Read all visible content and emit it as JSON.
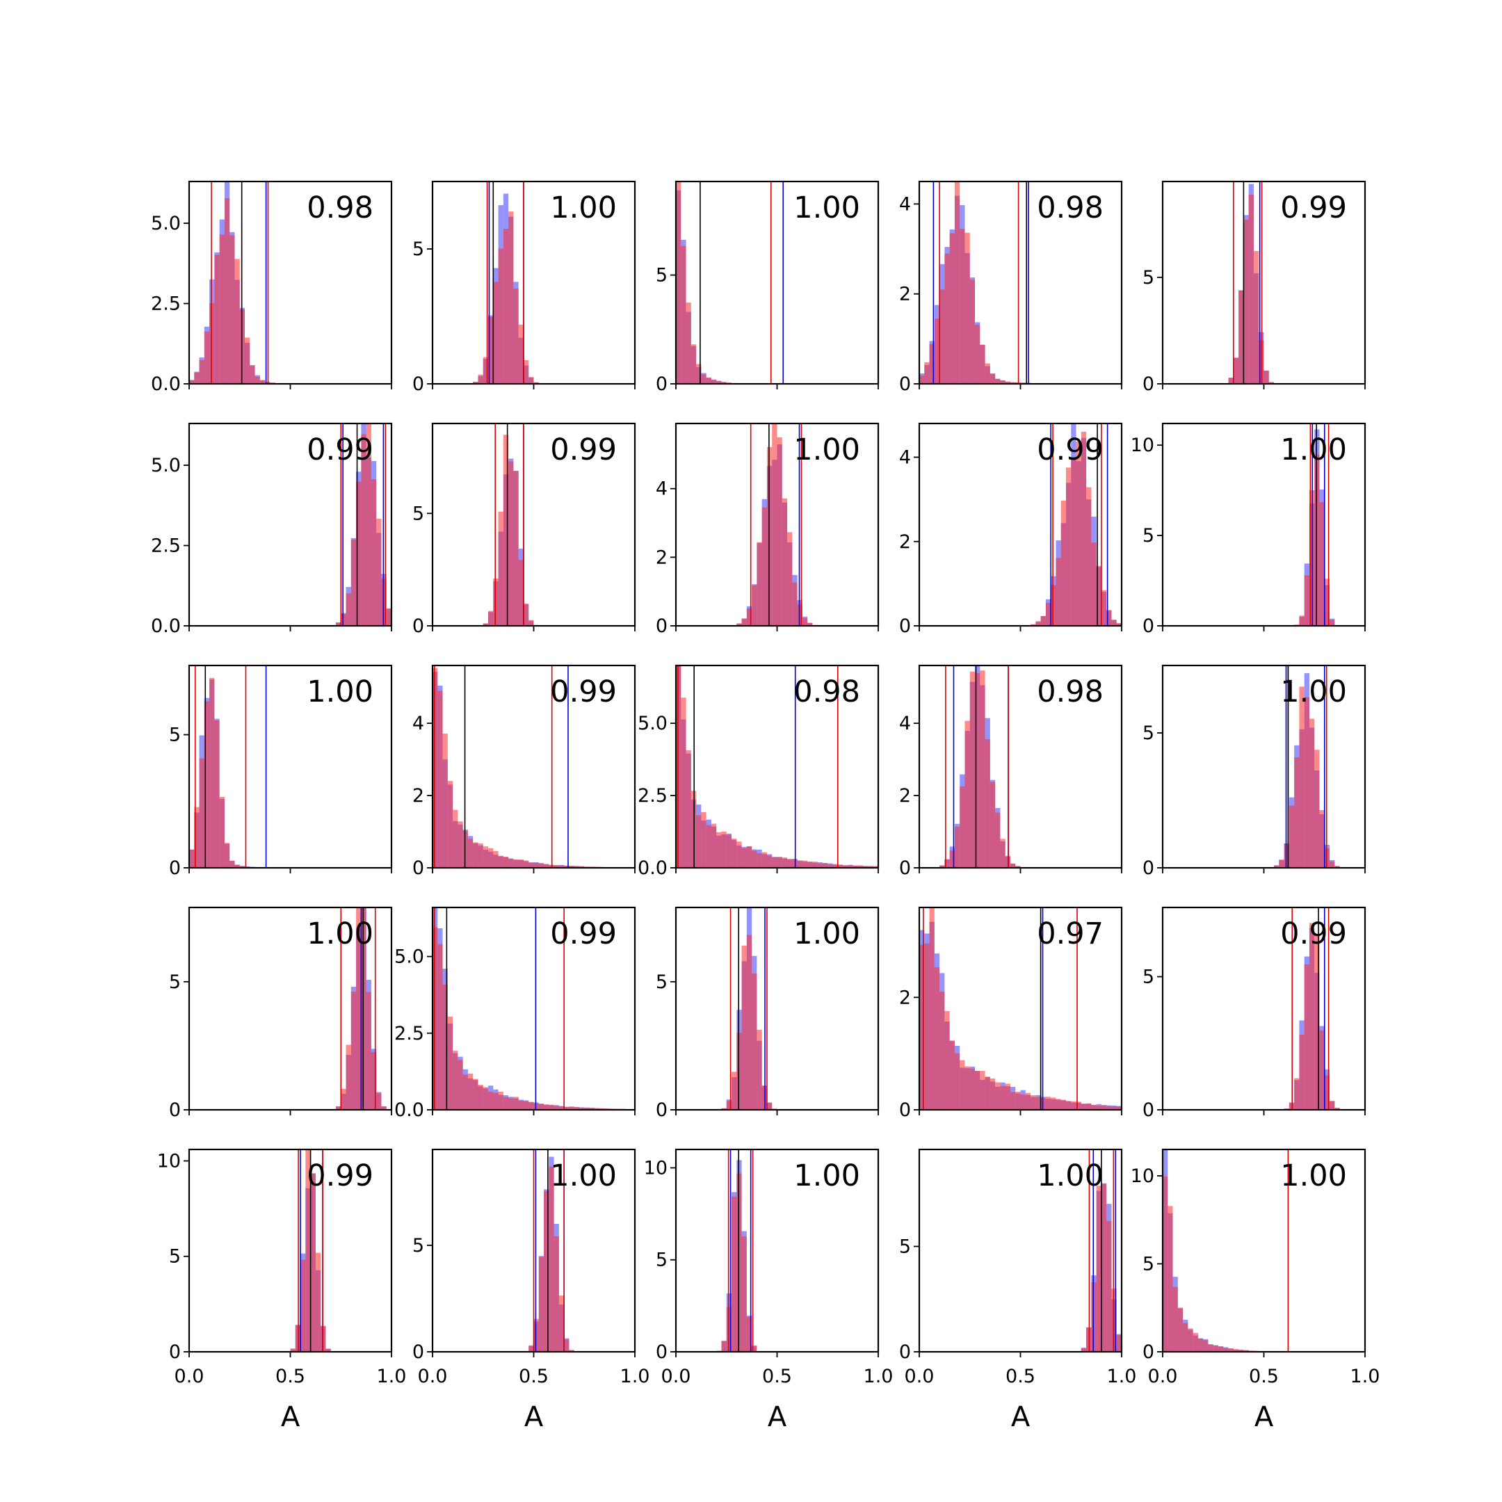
{
  "chart_data": {
    "type": "histogram-grid",
    "rows": 5,
    "cols": 5,
    "xlim": [
      0,
      1
    ],
    "xticks": [
      "0.0",
      "0.5",
      "1.0"
    ],
    "xlabel": "A",
    "colors": {
      "red_hist": "#ff2a2a",
      "blue_hist": "#3c3cf5",
      "red_line": "#e00000",
      "blue_line": "#0000dd",
      "black_line": "#000000"
    },
    "panels": [
      {
        "annotation": "0.98",
        "ymax": 6.3,
        "yticks": [
          0,
          2.5,
          5
        ],
        "ytick_labels": [
          "0.0",
          "2.5",
          "5.0"
        ],
        "shape": "skew",
        "peak": 0.18,
        "width": 0.06,
        "tail": 0.08,
        "tail_len": 0.7,
        "height": 6.0,
        "lines": {
          "red": [
            0.11,
            0.39
          ],
          "blue": [
            0.38
          ],
          "black": [
            0.26
          ]
        }
      },
      {
        "annotation": "1.00",
        "ymax": 7.5,
        "yticks": [
          0,
          5
        ],
        "ytick_labels": [
          "0",
          "5"
        ],
        "shape": "normal",
        "peak": 0.36,
        "width": 0.05,
        "height": 6.5,
        "lines": {
          "red": [
            0.27,
            0.45
          ],
          "blue": [
            0.28,
            0.45
          ],
          "black": [
            0.3
          ]
        }
      },
      {
        "annotation": "1.00",
        "ymax": 9.3,
        "yticks": [
          0,
          5
        ],
        "ytick_labels": [
          "0",
          "5"
        ],
        "shape": "exp",
        "peak": 0.01,
        "width": 0.04,
        "tail": 0.06,
        "tail_len": 1.0,
        "height": 8.5,
        "lines": {
          "red": [
            0.47
          ],
          "blue": [
            0.53
          ],
          "black": [
            0.12
          ]
        }
      },
      {
        "annotation": "0.98",
        "ymax": 4.5,
        "yticks": [
          0,
          2,
          4
        ],
        "ytick_labels": [
          "0",
          "2",
          "4"
        ],
        "shape": "skew",
        "peak": 0.18,
        "width": 0.07,
        "tail": 0.12,
        "tail_len": 0.8,
        "height": 4.2,
        "lines": {
          "red": [
            0.1,
            0.49
          ],
          "blue": [
            0.07,
            0.54
          ],
          "black": [
            0.53
          ]
        }
      },
      {
        "annotation": "0.99",
        "ymax": 9.5,
        "yticks": [
          0,
          5
        ],
        "ytick_labels": [
          "0",
          "5"
        ],
        "shape": "normal",
        "peak": 0.43,
        "width": 0.035,
        "height": 8.7,
        "lines": {
          "red": [
            0.35,
            0.49
          ],
          "blue": [
            0.48
          ],
          "black": [
            0.4
          ]
        }
      },
      {
        "annotation": "0.99",
        "ymax": 6.3,
        "yticks": [
          0,
          2.5,
          5
        ],
        "ytick_labels": [
          "0.0",
          "2.5",
          "5.0"
        ],
        "shape": "normal",
        "peak": 0.88,
        "width": 0.05,
        "height": 6.0,
        "lines": {
          "red": [
            0.75,
            0.97
          ],
          "blue": [
            0.76,
            0.96
          ],
          "black": [
            0.83
          ]
        }
      },
      {
        "annotation": "0.99",
        "ymax": 9.0,
        "yticks": [
          0,
          5
        ],
        "ytick_labels": [
          "0",
          "5"
        ],
        "shape": "normal",
        "peak": 0.38,
        "width": 0.04,
        "height": 8.5,
        "lines": {
          "red": [
            0.31,
            0.45
          ],
          "blue": [
            0.45
          ],
          "black": [
            0.37
          ]
        }
      },
      {
        "annotation": "1.00",
        "ymax": 5.9,
        "yticks": [
          0,
          2,
          4
        ],
        "ytick_labels": [
          "0",
          "2",
          "4"
        ],
        "shape": "normal",
        "peak": 0.49,
        "width": 0.06,
        "height": 5.5,
        "lines": {
          "red": [
            0.37,
            0.62
          ],
          "blue": [
            0.61
          ],
          "black": [
            0.46
          ]
        }
      },
      {
        "annotation": "0.99",
        "ymax": 4.8,
        "yticks": [
          0,
          2,
          4
        ],
        "ytick_labels": [
          "0",
          "2",
          "4"
        ],
        "shape": "normal",
        "peak": 0.78,
        "width": 0.07,
        "height": 4.5,
        "lines": {
          "red": [
            0.66,
            0.9
          ],
          "blue": [
            0.65,
            0.93
          ],
          "black": [
            0.88
          ]
        }
      },
      {
        "annotation": "1.00",
        "ymax": 11.2,
        "yticks": [
          0,
          5,
          10
        ],
        "ytick_labels": [
          "0",
          "5",
          "10"
        ],
        "shape": "normal",
        "peak": 0.76,
        "width": 0.03,
        "height": 10.5,
        "lines": {
          "red": [
            0.73,
            0.82
          ],
          "blue": [
            0.74,
            0.8
          ],
          "black": [
            0.76
          ]
        }
      },
      {
        "annotation": "1.00",
        "ymax": 7.6,
        "yticks": [
          0,
          5
        ],
        "ytick_labels": [
          "0",
          "5"
        ],
        "shape": "skew",
        "peak": 0.1,
        "width": 0.04,
        "tail": 0.07,
        "tail_len": 0.8,
        "height": 7.2,
        "lines": {
          "red": [
            0.03,
            0.28
          ],
          "blue": [
            0.38
          ],
          "black": [
            0.08
          ]
        }
      },
      {
        "annotation": "0.99",
        "ymax": 5.6,
        "yticks": [
          0,
          2,
          4
        ],
        "ytick_labels": [
          "0",
          "2",
          "4"
        ],
        "shape": "exp",
        "peak": 0.02,
        "width": 0.04,
        "tail": 0.18,
        "tail_len": 1.0,
        "height": 5.0,
        "lines": {
          "red": [
            0.01,
            0.59
          ],
          "blue": [
            0.67
          ],
          "black": [
            0.16
          ]
        }
      },
      {
        "annotation": "0.98",
        "ymax": 7.0,
        "yticks": [
          0,
          2.5,
          5
        ],
        "ytick_labels": [
          "0.0",
          "2.5",
          "5.0"
        ],
        "shape": "exp",
        "peak": 0.01,
        "width": 0.04,
        "tail": 0.25,
        "tail_len": 1.0,
        "height": 6.6,
        "lines": {
          "red": [
            0.01,
            0.8
          ],
          "blue": [
            0.59
          ],
          "black": [
            0.09
          ]
        }
      },
      {
        "annotation": "0.98",
        "ymax": 5.6,
        "yticks": [
          0,
          2,
          4
        ],
        "ytick_labels": [
          "0",
          "2",
          "4"
        ],
        "shape": "skew",
        "peak": 0.29,
        "width": 0.06,
        "tail": 0.06,
        "tail_len": 0.5,
        "height": 5.3,
        "lines": {
          "red": [
            0.13,
            0.44
          ],
          "blue": [
            0.17,
            0.44
          ],
          "black": [
            0.28
          ]
        }
      },
      {
        "annotation": "1.00",
        "ymax": 7.5,
        "yticks": [
          0,
          5
        ],
        "ytick_labels": [
          "0",
          "5"
        ],
        "shape": "normal",
        "peak": 0.71,
        "width": 0.05,
        "height": 6.6,
        "lines": {
          "red": [
            0.62,
            0.81
          ],
          "blue": [
            0.61,
            0.8
          ],
          "black": [
            0.62
          ]
        }
      },
      {
        "annotation": "1.00",
        "ymax": 7.9,
        "yticks": [
          0,
          5
        ],
        "ytick_labels": [
          "0",
          "5"
        ],
        "shape": "normal",
        "peak": 0.85,
        "width": 0.04,
        "height": 7.5,
        "lines": {
          "red": [
            0.75,
            0.92
          ],
          "blue": [
            0.85
          ],
          "black": [
            0.86
          ]
        }
      },
      {
        "annotation": "0.99",
        "ymax": 6.6,
        "yticks": [
          0,
          2.5,
          5
        ],
        "ytick_labels": [
          "0.0",
          "2.5",
          "5.0"
        ],
        "shape": "exp",
        "peak": 0.02,
        "width": 0.04,
        "tail": 0.2,
        "tail_len": 1.0,
        "height": 6.2,
        "lines": {
          "red": [
            0.01,
            0.65
          ],
          "blue": [
            0.51
          ],
          "black": [
            0.07
          ]
        }
      },
      {
        "annotation": "1.00",
        "ymax": 7.9,
        "yticks": [
          0,
          5
        ],
        "ytick_labels": [
          "0",
          "5"
        ],
        "shape": "normal",
        "peak": 0.36,
        "width": 0.04,
        "height": 7.0,
        "lines": {
          "red": [
            0.27,
            0.45
          ],
          "blue": [
            0.44
          ],
          "black": [
            0.31
          ]
        }
      },
      {
        "annotation": "0.97",
        "ymax": 3.6,
        "yticks": [
          0,
          2
        ],
        "ytick_labels": [
          "0",
          "2"
        ],
        "shape": "exp",
        "peak": 0.06,
        "width": 0.05,
        "tail": 0.3,
        "tail_len": 1.0,
        "height": 3.3,
        "lines": {
          "red": [
            0.02,
            0.78
          ],
          "blue": [
            0.61
          ],
          "black": [
            0.6
          ]
        }
      },
      {
        "annotation": "0.99",
        "ymax": 7.6,
        "yticks": [
          0,
          5
        ],
        "ytick_labels": [
          "0",
          "5"
        ],
        "shape": "normal",
        "peak": 0.74,
        "width": 0.04,
        "height": 7.0,
        "lines": {
          "red": [
            0.64,
            0.82
          ],
          "blue": [
            0.8
          ],
          "black": [
            0.77
          ]
        }
      },
      {
        "annotation": "0.99",
        "ymax": 10.6,
        "yticks": [
          0,
          5,
          10
        ],
        "ytick_labels": [
          "0",
          "5",
          "10"
        ],
        "shape": "normal",
        "peak": 0.6,
        "width": 0.03,
        "height": 10.0,
        "lines": {
          "red": [
            0.54,
            0.66
          ],
          "blue": [
            0.55,
            0.66
          ],
          "black": [
            0.6
          ]
        }
      },
      {
        "annotation": "1.00",
        "ymax": 9.5,
        "yticks": [
          0,
          5
        ],
        "ytick_labels": [
          "0",
          "5"
        ],
        "shape": "normal",
        "peak": 0.58,
        "width": 0.035,
        "height": 8.7,
        "lines": {
          "red": [
            0.5,
            0.65
          ],
          "blue": [
            0.51,
            0.65
          ],
          "black": [
            0.57
          ]
        }
      },
      {
        "annotation": "1.00",
        "ymax": 11.0,
        "yticks": [
          0,
          5,
          10
        ],
        "ytick_labels": [
          "0",
          "5",
          "10"
        ],
        "shape": "normal",
        "peak": 0.31,
        "width": 0.03,
        "height": 10.0,
        "lines": {
          "red": [
            0.26,
            0.38
          ],
          "blue": [
            0.27,
            0.37
          ],
          "black": [
            0.31
          ]
        }
      },
      {
        "annotation": "1.00",
        "ymax": 9.6,
        "yticks": [
          0,
          5
        ],
        "ytick_labels": [
          "0",
          "5"
        ],
        "shape": "normal",
        "peak": 0.91,
        "width": 0.035,
        "height": 9.0,
        "lines": {
          "red": [
            0.84,
            0.96
          ],
          "blue": [
            0.86,
            0.97
          ],
          "black": [
            0.9
          ]
        }
      },
      {
        "annotation": "1.00",
        "ymax": 11.5,
        "yticks": [
          0,
          5,
          10
        ],
        "ytick_labels": [
          "0",
          "5",
          "10"
        ],
        "shape": "exp",
        "peak": 0.01,
        "width": 0.03,
        "tail": 0.1,
        "tail_len": 1.0,
        "height": 11.0,
        "lines": {
          "red": [
            0.62
          ],
          "blue": [],
          "black": []
        }
      }
    ]
  }
}
